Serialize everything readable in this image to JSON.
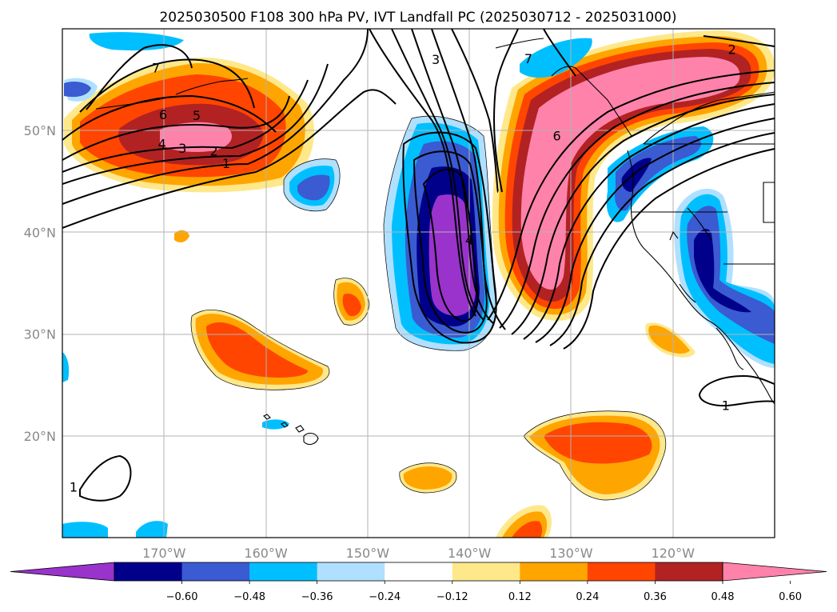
{
  "title": "2025030500 F108 300 hPa PV, IVT Landfall PC (2025030712 - 2025031000)",
  "map": {
    "lon_range": [
      -180,
      -110
    ],
    "lat_range": [
      10,
      60
    ],
    "lon_ticks": [
      {
        "lon": -170,
        "label": "170°W"
      },
      {
        "lon": -160,
        "label": "160°W"
      },
      {
        "lon": -150,
        "label": "150°W"
      },
      {
        "lon": -140,
        "label": "140°W"
      },
      {
        "lon": -130,
        "label": "130°W"
      },
      {
        "lon": -120,
        "label": "120°W"
      }
    ],
    "lat_ticks": [
      {
        "lat": 20,
        "label": "20°N"
      },
      {
        "lat": 30,
        "label": "30°N"
      },
      {
        "lat": 40,
        "label": "40°N"
      },
      {
        "lat": 50,
        "label": "50°N"
      }
    ],
    "gridlines": true
  },
  "colorbar": {
    "extend": "both",
    "colors": [
      "#9933cc",
      "#00008b",
      "#3a5bd1",
      "#00bfff",
      "#b0e0ff",
      "#ffffff",
      "#ffe88a",
      "#ffa500",
      "#ff4500",
      "#b22222",
      "#ff82ab"
    ],
    "tick_labels": [
      "−0.60",
      "−0.48",
      "−0.36",
      "−0.24",
      "−0.12",
      "0.12",
      "0.24",
      "0.36",
      "0.48",
      "0.60"
    ]
  },
  "contour_labels": [
    {
      "text": "7",
      "lon": -170.8,
      "lat": 56.2
    },
    {
      "text": "6",
      "lon": -170.1,
      "lat": 51.6
    },
    {
      "text": "5",
      "lon": -166.8,
      "lat": 51.5
    },
    {
      "text": "4",
      "lon": -170.2,
      "lat": 48.7
    },
    {
      "text": "3",
      "lon": -168.2,
      "lat": 48.3
    },
    {
      "text": "2",
      "lon": -165.1,
      "lat": 48.0
    },
    {
      "text": "1",
      "lon": -163.9,
      "lat": 46.8
    },
    {
      "text": "3",
      "lon": -143.3,
      "lat": 57.0
    },
    {
      "text": "7",
      "lon": -134.2,
      "lat": 57.1
    },
    {
      "text": "6",
      "lon": -131.4,
      "lat": 49.5
    },
    {
      "text": "4",
      "lon": -140.0,
      "lat": 39.3
    },
    {
      "text": "2",
      "lon": -114.2,
      "lat": 58.0
    },
    {
      "text": "1",
      "lon": -114.8,
      "lat": 23.0
    },
    {
      "text": "1",
      "lon": -178.9,
      "lat": 15.0
    }
  ],
  "shading_regions": [
    {
      "name": "gulf-of-alaska-negative",
      "level": -0.6
    },
    {
      "name": "alaska-north-pacific-positive",
      "level": 0.6
    },
    {
      "name": "west-coast-jet-positive",
      "level": 0.6
    },
    {
      "name": "subtropical-positive",
      "level": 0.36
    }
  ]
}
